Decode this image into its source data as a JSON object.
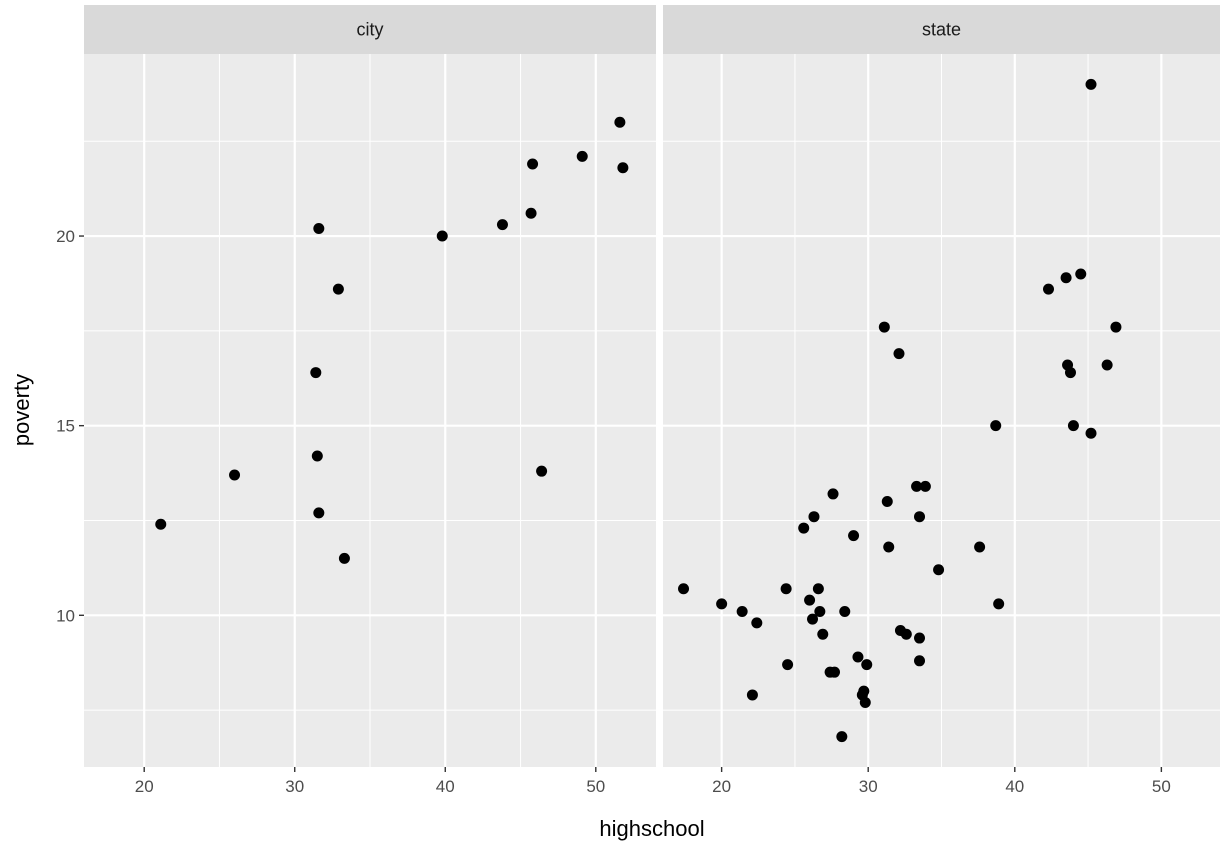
{
  "chart_data": {
    "type": "scatter",
    "xlabel": "highschool",
    "ylabel": "poverty",
    "xlim": [
      16,
      54
    ],
    "ylim": [
      6,
      24.8
    ],
    "x_ticks": [
      20,
      30,
      40,
      50
    ],
    "y_ticks": [
      10,
      15,
      20
    ],
    "grid": true,
    "colors": {
      "panel_bg": "#EBEBEB",
      "strip_bg": "#D9D9D9",
      "grid": "#FFFFFF",
      "point": "#000000"
    },
    "panels": [
      {
        "label": "city",
        "points": [
          [
            21.1,
            12.4
          ],
          [
            26.0,
            13.7
          ],
          [
            31.4,
            16.4
          ],
          [
            31.5,
            14.2
          ],
          [
            31.6,
            12.7
          ],
          [
            31.6,
            20.2
          ],
          [
            32.9,
            18.6
          ],
          [
            33.3,
            11.5
          ],
          [
            39.8,
            20.0
          ],
          [
            43.8,
            20.3
          ],
          [
            45.7,
            20.6
          ],
          [
            45.8,
            21.9
          ],
          [
            46.4,
            13.8
          ],
          [
            49.1,
            22.1
          ],
          [
            51.6,
            23.0
          ],
          [
            51.8,
            21.8
          ]
        ]
      },
      {
        "label": "state",
        "points": [
          [
            17.4,
            10.7
          ],
          [
            20.0,
            10.3
          ],
          [
            21.4,
            10.1
          ],
          [
            22.1,
            7.9
          ],
          [
            22.4,
            9.8
          ],
          [
            24.4,
            10.7
          ],
          [
            24.5,
            8.7
          ],
          [
            25.6,
            12.3
          ],
          [
            26.0,
            10.4
          ],
          [
            26.2,
            9.9
          ],
          [
            26.3,
            12.6
          ],
          [
            26.6,
            10.7
          ],
          [
            26.7,
            10.1
          ],
          [
            26.9,
            9.5
          ],
          [
            27.4,
            8.5
          ],
          [
            27.6,
            13.2
          ],
          [
            27.7,
            8.5
          ],
          [
            28.2,
            6.8
          ],
          [
            28.4,
            10.1
          ],
          [
            29.0,
            12.1
          ],
          [
            29.3,
            8.9
          ],
          [
            29.6,
            7.9
          ],
          [
            29.7,
            8.0
          ],
          [
            29.8,
            7.7
          ],
          [
            29.9,
            8.7
          ],
          [
            31.1,
            17.6
          ],
          [
            31.3,
            13.0
          ],
          [
            31.4,
            11.8
          ],
          [
            32.1,
            16.9
          ],
          [
            32.2,
            9.6
          ],
          [
            32.6,
            9.5
          ],
          [
            33.3,
            13.4
          ],
          [
            33.5,
            12.6
          ],
          [
            33.5,
            9.4
          ],
          [
            33.5,
            8.8
          ],
          [
            33.9,
            13.4
          ],
          [
            34.8,
            11.2
          ],
          [
            37.6,
            11.8
          ],
          [
            38.7,
            15.0
          ],
          [
            38.9,
            10.3
          ],
          [
            42.3,
            18.6
          ],
          [
            43.5,
            18.9
          ],
          [
            43.6,
            16.6
          ],
          [
            43.8,
            16.4
          ],
          [
            44.0,
            15.0
          ],
          [
            44.5,
            19.0
          ],
          [
            45.2,
            24.0
          ],
          [
            45.2,
            14.8
          ],
          [
            46.3,
            16.6
          ],
          [
            46.9,
            17.6
          ]
        ]
      }
    ]
  }
}
